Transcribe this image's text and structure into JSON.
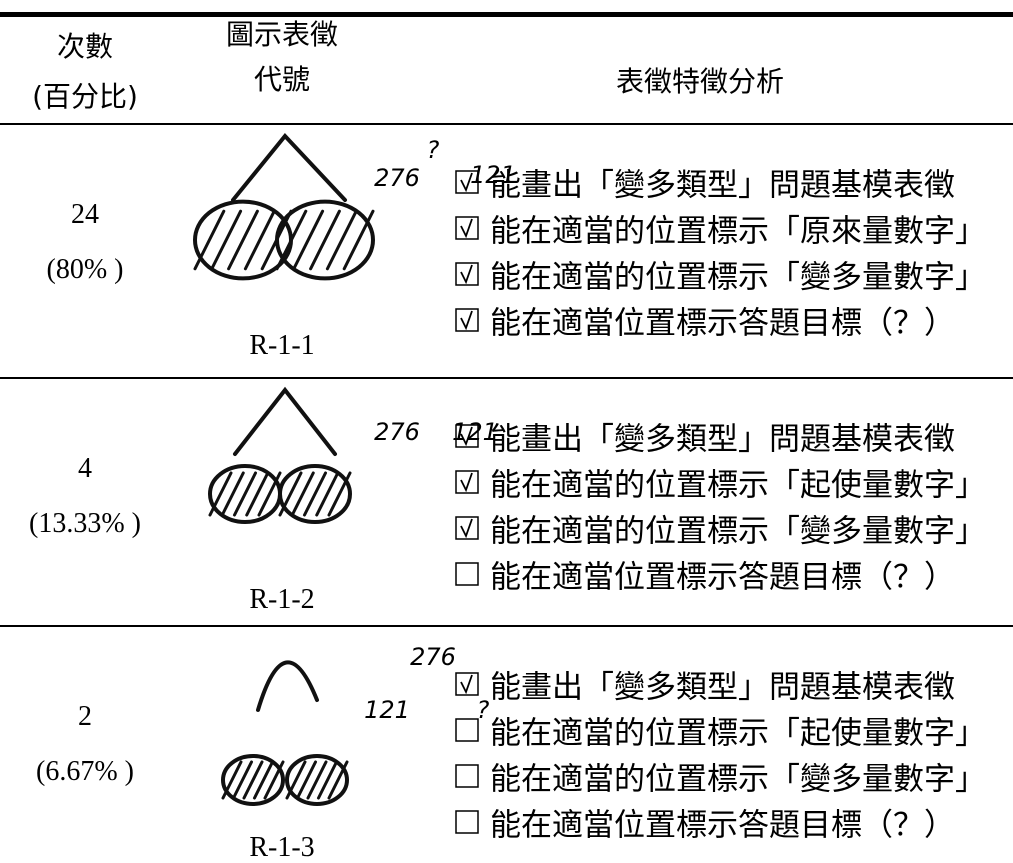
{
  "header": {
    "count": [
      "次數",
      "(百分比)"
    ],
    "code": [
      "圖示表徵",
      "代號"
    ],
    "analysis": "表徵特徵分析"
  },
  "table": {
    "rows": [
      {
        "count": 24,
        "percent": "(80% )",
        "code": "R-1-1",
        "sketch": [
          "?",
          "276",
          "121"
        ],
        "items": [
          {
            "checked": true,
            "text": "能畫出「變多類型」問題基模表徵"
          },
          {
            "checked": true,
            "text": "能在適當的位置標示「原來量數字」"
          },
          {
            "checked": true,
            "text": "能在適當的位置標示「變多量數字」"
          },
          {
            "checked": true,
            "text": "能在適當位置標示答題目標（？）"
          }
        ]
      },
      {
        "count": 4,
        "percent": "(13.33% )",
        "code": "R-1-2",
        "sketch": [
          "276",
          "121"
        ],
        "items": [
          {
            "checked": true,
            "text": "能畫出「變多類型」問題基模表徵"
          },
          {
            "checked": true,
            "text": "能在適當的位置標示「起使量數字」"
          },
          {
            "checked": true,
            "text": "能在適當的位置標示「變多量數字」"
          },
          {
            "checked": false,
            "text": "能在適當位置標示答題目標（？）"
          }
        ]
      },
      {
        "count": 2,
        "percent": "(6.67% )",
        "code": "R-1-3",
        "sketch": [
          "276",
          "121",
          "?"
        ],
        "items": [
          {
            "checked": true,
            "text": "能畫出「變多類型」問題基模表徵"
          },
          {
            "checked": false,
            "text": "能在適當的位置標示「起使量數字」"
          },
          {
            "checked": false,
            "text": "能在適當的位置標示「變多量數字」"
          },
          {
            "checked": false,
            "text": "能在適當位置標示答題目標（？）"
          }
        ]
      }
    ]
  }
}
